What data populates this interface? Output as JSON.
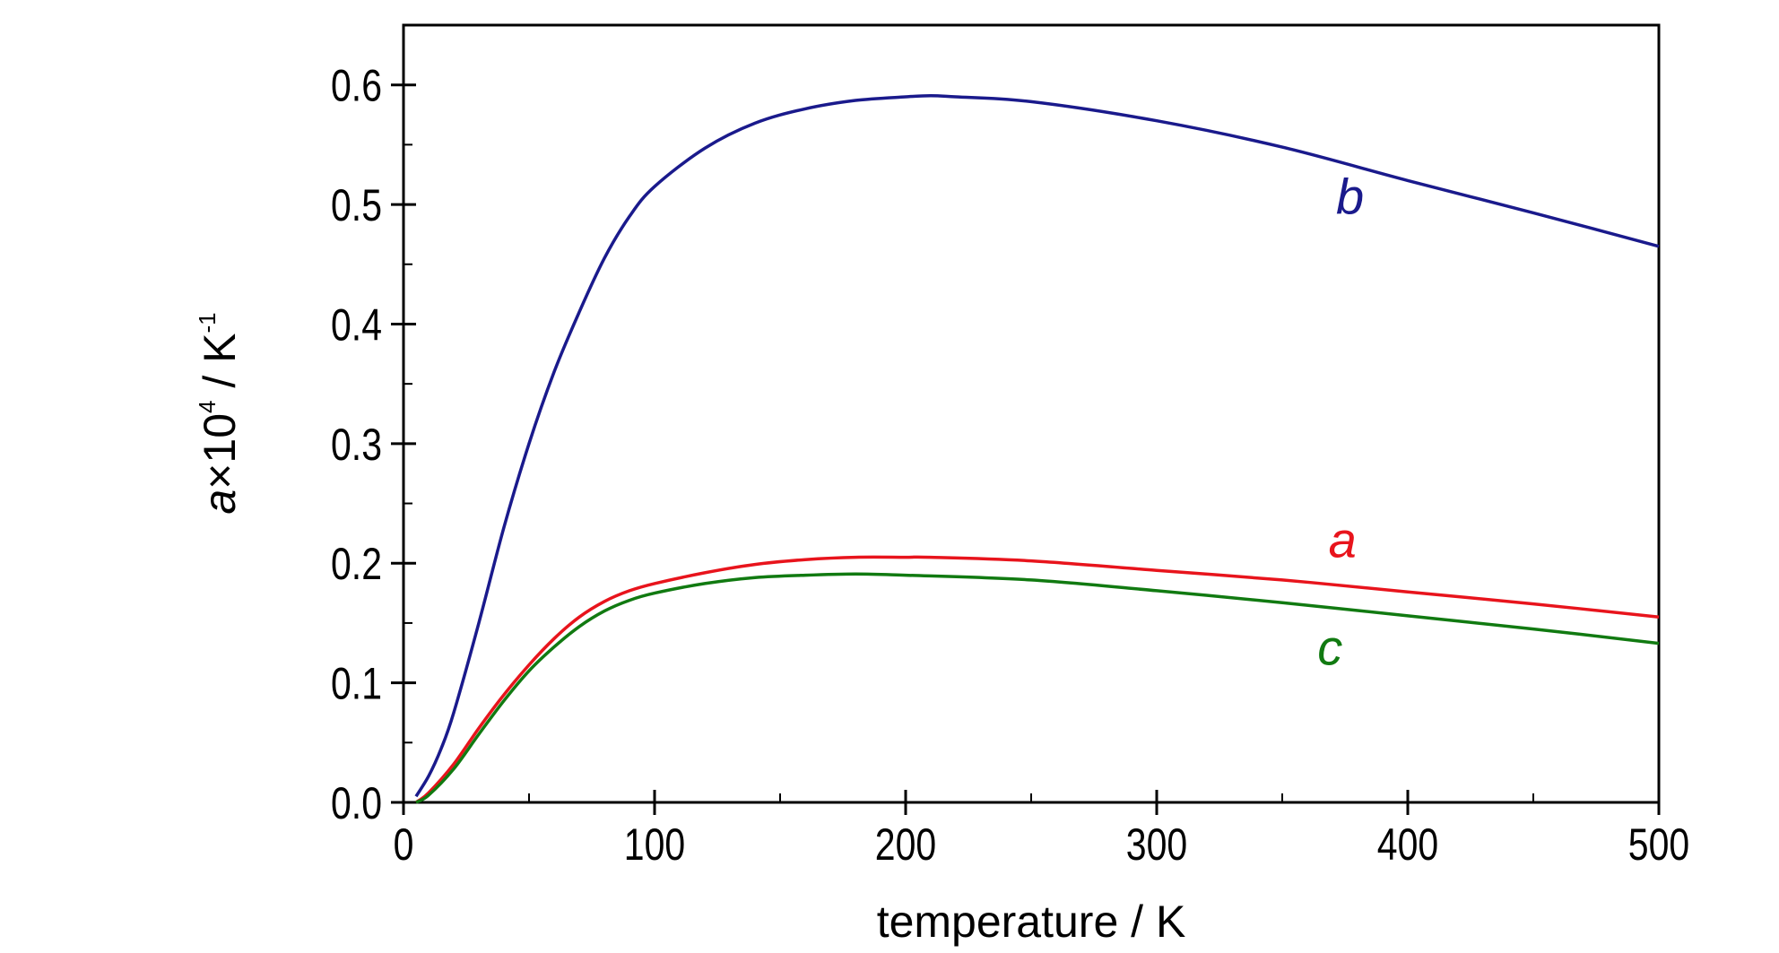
{
  "chart_data": {
    "type": "line",
    "xlabel": "temperature / K",
    "ylabel": {
      "symbol": "a",
      "times": "×",
      "base": "10",
      "exponent": "4",
      "unit": " / K",
      "unit_exponent": "-1"
    },
    "xlim": [
      0,
      500
    ],
    "ylim": [
      0.0,
      0.65
    ],
    "x_ticks": [
      0,
      100,
      200,
      300,
      400,
      500
    ],
    "x_tick_labels": [
      "0",
      "100",
      "200",
      "300",
      "400",
      "500"
    ],
    "y_ticks": [
      0.0,
      0.1,
      0.2,
      0.3,
      0.4,
      0.5,
      0.6
    ],
    "y_tick_labels": [
      "0.0",
      "0.1",
      "0.2",
      "0.3",
      "0.4",
      "0.5",
      "0.6"
    ],
    "grid": false,
    "series": [
      {
        "name": "a",
        "color": "#e8141c",
        "label_at": [
          374,
          0.205
        ],
        "points": [
          [
            5,
            0.0
          ],
          [
            10,
            0.008
          ],
          [
            20,
            0.032
          ],
          [
            30,
            0.062
          ],
          [
            40,
            0.09
          ],
          [
            50,
            0.115
          ],
          [
            60,
            0.137
          ],
          [
            70,
            0.155
          ],
          [
            80,
            0.168
          ],
          [
            90,
            0.177
          ],
          [
            100,
            0.183
          ],
          [
            120,
            0.192
          ],
          [
            140,
            0.199
          ],
          [
            160,
            0.203
          ],
          [
            180,
            0.205
          ],
          [
            200,
            0.205
          ],
          [
            210,
            0.205
          ],
          [
            250,
            0.202
          ],
          [
            300,
            0.194
          ],
          [
            350,
            0.186
          ],
          [
            400,
            0.176
          ],
          [
            450,
            0.166
          ],
          [
            500,
            0.155
          ]
        ]
      },
      {
        "name": "b",
        "color": "#1a1a8c",
        "label_at": [
          377,
          0.492
        ],
        "points": [
          [
            5,
            0.005
          ],
          [
            10,
            0.022
          ],
          [
            15,
            0.045
          ],
          [
            20,
            0.075
          ],
          [
            30,
            0.15
          ],
          [
            40,
            0.23
          ],
          [
            50,
            0.3
          ],
          [
            60,
            0.36
          ],
          [
            70,
            0.41
          ],
          [
            80,
            0.455
          ],
          [
            90,
            0.49
          ],
          [
            100,
            0.515
          ],
          [
            120,
            0.547
          ],
          [
            140,
            0.568
          ],
          [
            160,
            0.58
          ],
          [
            180,
            0.587
          ],
          [
            200,
            0.59
          ],
          [
            210,
            0.591
          ],
          [
            220,
            0.59
          ],
          [
            250,
            0.586
          ],
          [
            300,
            0.57
          ],
          [
            350,
            0.548
          ],
          [
            400,
            0.52
          ],
          [
            450,
            0.493
          ],
          [
            500,
            0.465
          ]
        ]
      },
      {
        "name": "c",
        "color": "#117a11",
        "label_at": [
          369,
          0.115
        ],
        "points": [
          [
            5,
            0.0
          ],
          [
            10,
            0.006
          ],
          [
            20,
            0.028
          ],
          [
            30,
            0.057
          ],
          [
            40,
            0.085
          ],
          [
            50,
            0.11
          ],
          [
            60,
            0.13
          ],
          [
            70,
            0.147
          ],
          [
            80,
            0.16
          ],
          [
            90,
            0.169
          ],
          [
            100,
            0.175
          ],
          [
            120,
            0.183
          ],
          [
            140,
            0.188
          ],
          [
            160,
            0.19
          ],
          [
            180,
            0.191
          ],
          [
            200,
            0.19
          ],
          [
            250,
            0.186
          ],
          [
            300,
            0.177
          ],
          [
            350,
            0.167
          ],
          [
            400,
            0.156
          ],
          [
            450,
            0.145
          ],
          [
            500,
            0.133
          ]
        ]
      }
    ]
  }
}
